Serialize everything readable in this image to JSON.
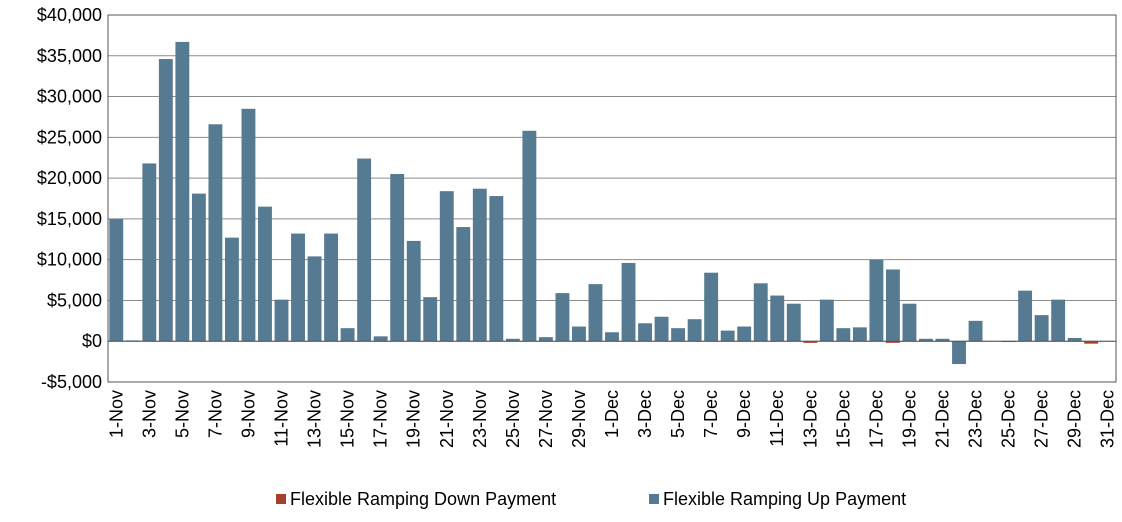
{
  "chart_data": {
    "type": "bar",
    "stacked": true,
    "categories": [
      "1-Nov",
      null,
      "3-Nov",
      null,
      "5-Nov",
      null,
      "7-Nov",
      null,
      "9-Nov",
      null,
      "11-Nov",
      null,
      "13-Nov",
      null,
      "15-Nov",
      null,
      "17-Nov",
      null,
      "19-Nov",
      null,
      "21-Nov",
      null,
      "23-Nov",
      null,
      "25-Nov",
      null,
      "27-Nov",
      null,
      "29-Nov",
      null,
      "1-Dec",
      null,
      "3-Dec",
      null,
      "5-Dec",
      null,
      "7-Dec",
      null,
      "9-Dec",
      null,
      "11-Dec",
      null,
      "13-Dec",
      null,
      "15-Dec",
      null,
      "17-Dec",
      null,
      "19-Dec",
      null,
      "21-Dec",
      null,
      "23-Dec",
      null,
      "25-Dec",
      null,
      "27-Dec",
      null,
      "29-Dec",
      null,
      "31-Dec"
    ],
    "series": [
      {
        "name": "Flexible Ramping Down Payment",
        "color": "#a5412a",
        "values": [
          0,
          0,
          0,
          0,
          0,
          0,
          0,
          0,
          0,
          0,
          0,
          0,
          0,
          0,
          0,
          0,
          0,
          0,
          0,
          0,
          0,
          0,
          0,
          0,
          0,
          0,
          0,
          0,
          0,
          0,
          0,
          0,
          0,
          0,
          0,
          0,
          0,
          0,
          0,
          0,
          0,
          0,
          -200,
          0,
          0,
          0,
          0,
          -200,
          0,
          0,
          0,
          0,
          0,
          0,
          -100,
          0,
          0,
          0,
          0,
          -300,
          0
        ]
      },
      {
        "name": "Flexible Ramping Up Payment",
        "color": "#557a92",
        "values": [
          15000,
          100,
          21800,
          34600,
          36700,
          18100,
          26600,
          12700,
          28500,
          16500,
          5100,
          13200,
          10400,
          13200,
          1600,
          22400,
          600,
          20500,
          12300,
          5400,
          18400,
          14000,
          18700,
          17800,
          300,
          25800,
          500,
          5900,
          1800,
          7000,
          1100,
          9600,
          2200,
          3000,
          1600,
          2700,
          8400,
          1300,
          1800,
          7100,
          5600,
          4600,
          0,
          5100,
          1600,
          1700,
          10000,
          8800,
          4600,
          300,
          300,
          -2800,
          2500,
          0,
          0,
          6200,
          3200,
          5100,
          400,
          0,
          0
        ]
      }
    ],
    "ylim": [
      -5000,
      40000
    ],
    "yticks": [
      {
        "value": -5000,
        "label": "-$5,000"
      },
      {
        "value": 0,
        "label": "$0"
      },
      {
        "value": 5000,
        "label": "$5,000"
      },
      {
        "value": 10000,
        "label": "$10,000"
      },
      {
        "value": 15000,
        "label": "$15,000"
      },
      {
        "value": 20000,
        "label": "$20,000"
      },
      {
        "value": 25000,
        "label": "$25,000"
      },
      {
        "value": 30000,
        "label": "$30,000"
      },
      {
        "value": 35000,
        "label": "$35,000"
      },
      {
        "value": 40000,
        "label": "$40,000"
      }
    ],
    "grid": true,
    "legend": "bottom"
  }
}
